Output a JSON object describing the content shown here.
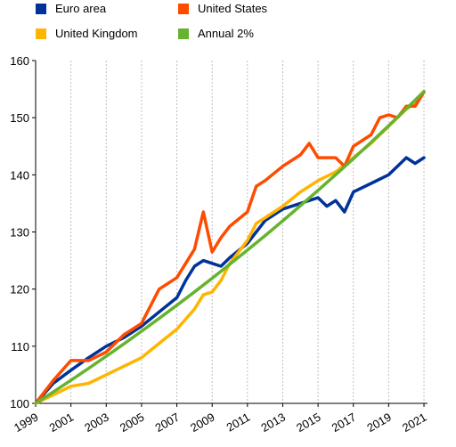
{
  "chart_data": {
    "type": "line",
    "title": "",
    "xlabel": "",
    "ylabel": "",
    "xlim": [
      1999,
      2021.2
    ],
    "ylim": [
      100,
      160
    ],
    "x_ticks": [
      "1999",
      "2001",
      "2003",
      "2005",
      "2007",
      "2009",
      "2011",
      "2013",
      "2015",
      "2017",
      "2019",
      "2021"
    ],
    "y_ticks": [
      "100",
      "110",
      "120",
      "130",
      "140",
      "150",
      "160"
    ],
    "grid": {
      "x": true,
      "y": false
    },
    "legend_position": "top",
    "series": [
      {
        "name": "Euro area",
        "color": "#003299",
        "points": [
          [
            1999,
            100.0
          ],
          [
            2000,
            103.5
          ],
          [
            2001,
            105.8
          ],
          [
            2002,
            108.0
          ],
          [
            2003,
            110.0
          ],
          [
            2004,
            111.5
          ],
          [
            2005,
            113.5
          ],
          [
            2006,
            116.0
          ],
          [
            2007,
            118.5
          ],
          [
            2007.5,
            121.5
          ],
          [
            2008,
            124.0
          ],
          [
            2008.5,
            125.0
          ],
          [
            2009,
            124.5
          ],
          [
            2009.5,
            124.0
          ],
          [
            2010,
            125.5
          ],
          [
            2011,
            128.0
          ],
          [
            2011.5,
            130.0
          ],
          [
            2012,
            132.0
          ],
          [
            2013,
            134.0
          ],
          [
            2014,
            135.0
          ],
          [
            2015,
            136.0
          ],
          [
            2015.5,
            134.5
          ],
          [
            2016,
            135.5
          ],
          [
            2016.5,
            133.5
          ],
          [
            2017,
            137.0
          ],
          [
            2018,
            138.5
          ],
          [
            2019,
            140.0
          ],
          [
            2019.5,
            141.5
          ],
          [
            2020,
            143.0
          ],
          [
            2020.5,
            142.0
          ],
          [
            2021,
            143.0
          ]
        ]
      },
      {
        "name": "United States",
        "color": "#ff4b00",
        "points": [
          [
            1999,
            100.0
          ],
          [
            2000,
            104.0
          ],
          [
            2001,
            107.5
          ],
          [
            2002,
            107.5
          ],
          [
            2003,
            109.0
          ],
          [
            2004,
            112.0
          ],
          [
            2005,
            114.0
          ],
          [
            2005.5,
            117.0
          ],
          [
            2006,
            120.0
          ],
          [
            2007,
            122.0
          ],
          [
            2008,
            127.0
          ],
          [
            2008.5,
            133.5
          ],
          [
            2009,
            126.5
          ],
          [
            2009.5,
            129.0
          ],
          [
            2010,
            131.0
          ],
          [
            2011,
            133.5
          ],
          [
            2011.5,
            138.0
          ],
          [
            2012,
            139.0
          ],
          [
            2013,
            141.5
          ],
          [
            2014,
            143.5
          ],
          [
            2014.5,
            145.5
          ],
          [
            2015,
            143.0
          ],
          [
            2016,
            143.0
          ],
          [
            2016.5,
            141.5
          ],
          [
            2017,
            145.0
          ],
          [
            2018,
            147.0
          ],
          [
            2018.5,
            150.0
          ],
          [
            2019,
            150.5
          ],
          [
            2019.5,
            150.0
          ],
          [
            2020,
            152.0
          ],
          [
            2020.5,
            152.0
          ],
          [
            2021,
            154.5
          ]
        ]
      },
      {
        "name": "United Kingdom",
        "color": "#ffb400",
        "points": [
          [
            1999,
            100.0
          ],
          [
            2000,
            101.5
          ],
          [
            2001,
            103.0
          ],
          [
            2002,
            103.5
          ],
          [
            2003,
            105.0
          ],
          [
            2004,
            106.5
          ],
          [
            2005,
            108.0
          ],
          [
            2006,
            110.5
          ],
          [
            2007,
            113.0
          ],
          [
            2008,
            116.5
          ],
          [
            2008.5,
            119.0
          ],
          [
            2009,
            119.5
          ],
          [
            2009.5,
            121.5
          ],
          [
            2010,
            124.5
          ],
          [
            2011,
            128.5
          ],
          [
            2011.5,
            131.5
          ],
          [
            2012,
            132.5
          ],
          [
            2013,
            134.5
          ],
          [
            2014,
            137.0
          ],
          [
            2015,
            139.0
          ],
          [
            2016,
            140.5
          ],
          [
            2017,
            143.0
          ],
          [
            2018,
            145.5
          ],
          [
            2019,
            148.5
          ],
          [
            2020,
            151.5
          ],
          [
            2020.5,
            152.5
          ],
          [
            2021,
            154.5
          ]
        ]
      },
      {
        "name": "Annual 2%",
        "color": "#65b32e",
        "points": [
          [
            1999,
            100.0
          ],
          [
            2000,
            102.0
          ],
          [
            2001,
            104.04
          ],
          [
            2002,
            106.12
          ],
          [
            2003,
            108.24
          ],
          [
            2004,
            110.41
          ],
          [
            2005,
            112.62
          ],
          [
            2006,
            114.87
          ],
          [
            2007,
            117.17
          ],
          [
            2008,
            119.51
          ],
          [
            2009,
            121.9
          ],
          [
            2010,
            124.34
          ],
          [
            2011,
            126.82
          ],
          [
            2012,
            129.36
          ],
          [
            2013,
            131.95
          ],
          [
            2014,
            134.59
          ],
          [
            2015,
            137.28
          ],
          [
            2016,
            140.02
          ],
          [
            2017,
            142.82
          ],
          [
            2018,
            145.68
          ],
          [
            2019,
            148.59
          ],
          [
            2020,
            151.57
          ],
          [
            2021,
            154.6
          ]
        ]
      }
    ]
  }
}
